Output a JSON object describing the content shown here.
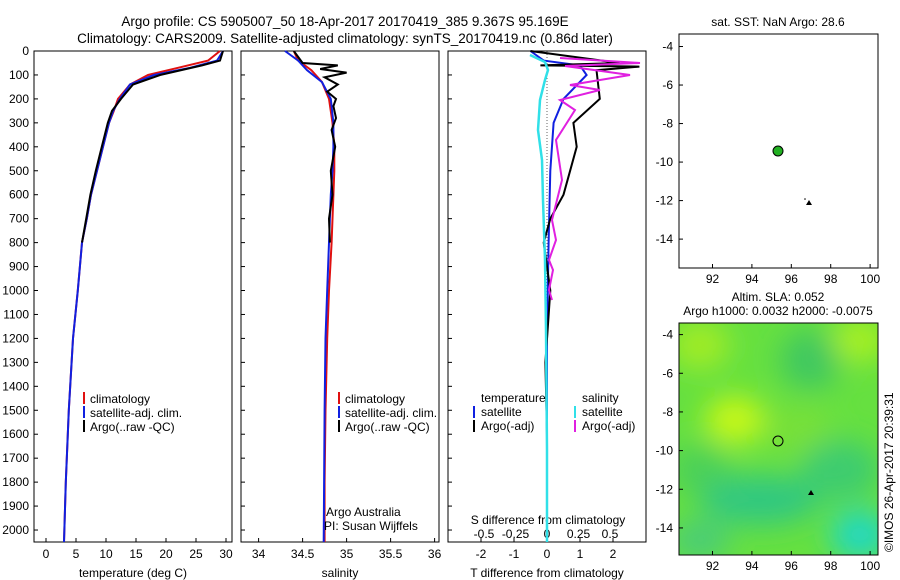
{
  "header": {
    "line1": "Argo profile: CS 5905007_50 18-Apr-2017 20170419_385 9.367S 95.169E",
    "line2": "Climatology: CARS2009. Satellite-adjusted climatology: synTS_20170419.nc (0.86d later)"
  },
  "depth_ticks": [
    0,
    100,
    200,
    300,
    400,
    500,
    600,
    700,
    800,
    900,
    1000,
    1100,
    1200,
    1300,
    1400,
    1500,
    1600,
    1700,
    1800,
    1900,
    2000
  ],
  "colors": {
    "climatology": "#e01010",
    "satellite": "#1020e0",
    "argo": "#000000",
    "sat_diff": "#30e0e8",
    "argo_diff": "#e020e0"
  },
  "panels": {
    "temperature": {
      "xlabel": "temperature (deg C)",
      "xticks": [
        "0",
        "5",
        "10",
        "15",
        "20",
        "25",
        "30"
      ],
      "legend": [
        "climatology",
        "satellite-adj. clim.",
        "Argo(..raw -QC)"
      ]
    },
    "salinity": {
      "xlabel": "salinity",
      "xticks": [
        "34",
        "34.5",
        "35",
        "35.5",
        "36"
      ],
      "legend": [
        "climatology",
        "satellite-adj. clim.",
        "Argo(..raw -QC)"
      ],
      "note1": "Argo Australia",
      "note2": "PI: Susan Wijffels"
    },
    "difference": {
      "top_caption": "S difference from climatology",
      "top_ticks": [
        "-0.5",
        "-0.25",
        "0",
        "0.25",
        "0.5"
      ],
      "xlabel": "T difference from climatology",
      "xticks": [
        "-2",
        "-1",
        "0",
        "1",
        "2"
      ],
      "legend_temp_title": "temperature",
      "legend_sal_title": "salinity",
      "legend_temp": [
        "satellite",
        "Argo(-adj)"
      ],
      "legend_sal": [
        "satellite",
        "Argo(-adj)"
      ]
    },
    "sst": {
      "title": "sat. SST: NaN Argo: 28.6",
      "xticks": [
        "92",
        "94",
        "96",
        "98",
        "100"
      ],
      "yticks": [
        "-4",
        "-6",
        "-8",
        "-10",
        "-12",
        "-14"
      ]
    },
    "sla": {
      "title1": "Altim. SLA: 0.052",
      "title2": "Argo h1000: 0.0032 h2000: -0.0075",
      "xticks": [
        "92",
        "94",
        "96",
        "98",
        "100"
      ],
      "yticks": [
        "-4",
        "-6",
        "-8",
        "-10",
        "-12",
        "-14"
      ],
      "credit": "©IMOS 26-Apr-2017 20:39:31"
    }
  },
  "chart_data": [
    {
      "type": "line",
      "xlabel": "temperature (deg C)",
      "ylim": [
        2050,
        0
      ],
      "xlim": [
        -2,
        31
      ],
      "series": [
        {
          "name": "climatology",
          "x": [
            29,
            27,
            22,
            17,
            14,
            12,
            11.3,
            10.5,
            9.5,
            8.5,
            7.5,
            6.8,
            6,
            5.3,
            4.5,
            3.8,
            3.3,
            3
          ],
          "y": [
            0,
            40,
            70,
            100,
            140,
            200,
            250,
            300,
            400,
            500,
            600,
            700,
            800,
            1000,
            1200,
            1500,
            1800,
            2050
          ]
        },
        {
          "name": "satellite-adj. clim.",
          "x": [
            29.5,
            28.5,
            24,
            18,
            14,
            12.3,
            11.2,
            10.5,
            9.5,
            8.5,
            7.5,
            6.8,
            6,
            5.3,
            4.5,
            3.8,
            3.3,
            3
          ],
          "y": [
            0,
            40,
            70,
            100,
            140,
            200,
            250,
            300,
            400,
            500,
            600,
            700,
            800,
            1000,
            1200,
            1500,
            1800,
            2050
          ]
        },
        {
          "name": "Argo(..raw -QC)",
          "x": [
            29.5,
            29,
            26,
            19,
            14.5,
            12.5,
            11,
            10.3,
            9.3,
            8.3,
            7.4,
            6.7,
            6
          ],
          "y": [
            0,
            40,
            60,
            100,
            140,
            200,
            250,
            300,
            400,
            500,
            600,
            700,
            800
          ]
        }
      ]
    },
    {
      "type": "line",
      "xlabel": "salinity",
      "ylim": [
        2050,
        0
      ],
      "xlim": [
        33.8,
        36.05
      ],
      "series": [
        {
          "name": "climatology",
          "x": [
            34.4,
            34.45,
            34.6,
            34.72,
            34.8,
            34.84,
            34.86,
            34.86,
            34.85,
            34.83,
            34.8,
            34.78,
            34.76,
            34.75,
            34.75
          ],
          "y": [
            0,
            40,
            80,
            130,
            200,
            300,
            400,
            500,
            600,
            800,
            1000,
            1200,
            1500,
            1800,
            2050
          ]
        },
        {
          "name": "satellite-adj. clim.",
          "x": [
            34.3,
            34.45,
            34.55,
            34.72,
            34.82,
            34.85,
            34.85,
            34.84,
            34.82,
            34.8,
            34.78,
            34.76,
            34.75,
            34.74
          ],
          "y": [
            0,
            40,
            80,
            130,
            200,
            300,
            400,
            500,
            600,
            800,
            1000,
            1200,
            1500,
            2050
          ]
        },
        {
          "name": "Argo(..raw -QC)",
          "x": [
            34.4,
            34.5,
            34.9,
            34.7,
            35.0,
            34.75,
            34.9,
            34.78,
            34.88,
            34.85,
            34.88,
            34.83,
            34.87,
            34.82,
            34.84,
            34.8,
            34.81
          ],
          "y": [
            0,
            50,
            60,
            75,
            90,
            110,
            140,
            170,
            200,
            230,
            280,
            330,
            400,
            500,
            600,
            700,
            800
          ]
        }
      ]
    },
    {
      "type": "line",
      "xlabel": "T difference from climatology",
      "ylim": [
        2050,
        0
      ],
      "xlim": [
        -3,
        3
      ],
      "series": [
        {
          "name": "satellite",
          "x": [
            -0.5,
            -0.1,
            1.0,
            1.2,
            0.5,
            0.2,
            0.1,
            0.05,
            0,
            0
          ],
          "y": [
            0,
            40,
            60,
            100,
            200,
            300,
            500,
            800,
            1200,
            2050
          ]
        },
        {
          "name": "Argo(-adj)",
          "x": [
            -0.5,
            2.2,
            -0.2,
            2.8,
            1.5,
            1.6,
            0.8,
            0.9,
            0.7,
            0.5,
            0.1,
            -0.1,
            0.1,
            -0.05,
            0
          ],
          "y": [
            0,
            50,
            60,
            65,
            80,
            200,
            300,
            400,
            500,
            600,
            700,
            800,
            1000,
            1300,
            1600
          ]
        }
      ]
    }
  ]
}
